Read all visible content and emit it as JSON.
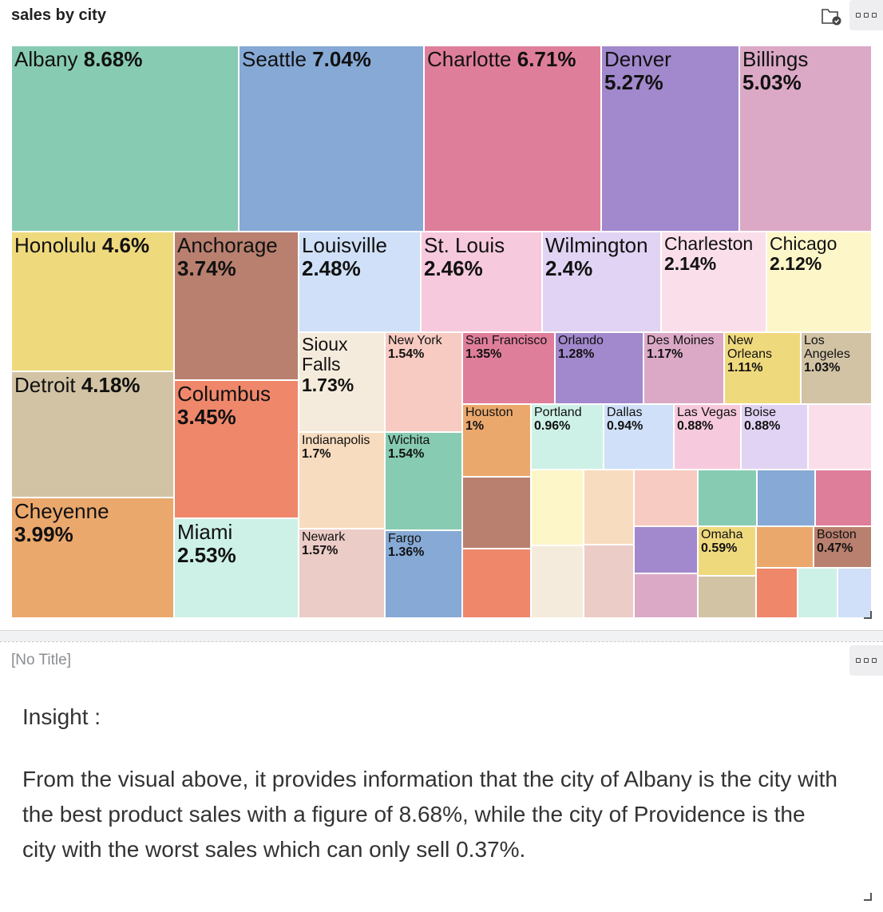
{
  "panel1": {
    "title": "sales by city"
  },
  "panel2": {
    "title": "[No Title]",
    "insight_heading": "Insight :",
    "insight_text": "From the visual above, it provides information that the city of Albany is the city with the best product sales with a figure of 8.68%, while the city of Providence is the city with the worst sales which can only sell 0.37%."
  },
  "icons": {
    "menu": "more-options-icon",
    "folder": "folder-check-icon",
    "resize": "resize-handle-icon"
  },
  "chart_data": {
    "type": "treemap",
    "title": "sales by city",
    "unit": "%",
    "items": [
      {
        "name": "Albany",
        "value": 8.68,
        "label": "8.68%",
        "color": "#88cbb3"
      },
      {
        "name": "Seattle",
        "value": 7.04,
        "label": "7.04%",
        "color": "#86a9d5"
      },
      {
        "name": "Charlotte",
        "value": 6.71,
        "label": "6.71%",
        "color": "#df7e9b"
      },
      {
        "name": "Denver",
        "value": 5.27,
        "label": "5.27%",
        "color": "#a288cc"
      },
      {
        "name": "Billings",
        "value": 5.03,
        "label": "5.03%",
        "color": "#dba9c6"
      },
      {
        "name": "Honolulu",
        "value": 4.6,
        "label": "4.6%",
        "color": "#efd97d"
      },
      {
        "name": "Anchorage",
        "value": 3.74,
        "label": "3.74%",
        "color": "#b9806f"
      },
      {
        "name": "Louisville",
        "value": 2.48,
        "label": "2.48%",
        "color": "#cfe0f8"
      },
      {
        "name": "St. Louis",
        "value": 2.46,
        "label": "2.46%",
        "color": "#f7c9dc"
      },
      {
        "name": "Wilmington",
        "value": 2.4,
        "label": "2.4%",
        "color": "#e1d3f3"
      },
      {
        "name": "Charleston",
        "value": 2.14,
        "label": "2.14%",
        "color": "#fadfea"
      },
      {
        "name": "Chicago",
        "value": 2.12,
        "label": "2.12%",
        "color": "#fdf6c8"
      },
      {
        "name": "Detroit",
        "value": 4.18,
        "label": "4.18%",
        "color": "#d2c3a5"
      },
      {
        "name": "Columbus",
        "value": 3.45,
        "label": "3.45%",
        "color": "#ef876b"
      },
      {
        "name": "Cheyenne",
        "value": 3.99,
        "label": "3.99%",
        "color": "#eba86d"
      },
      {
        "name": "Miami",
        "value": 2.53,
        "label": "2.53%",
        "color": "#cdf1e6"
      },
      {
        "name": "Sioux Falls",
        "value": 1.73,
        "label": "1.73%",
        "color": "#f5ebdc"
      },
      {
        "name": "New York",
        "value": 1.54,
        "label": "1.54%",
        "color": "#f7cbc1"
      },
      {
        "name": "San Francisco",
        "value": 1.35,
        "label": "1.35%",
        "color": "#df7e9b"
      },
      {
        "name": "Orlando",
        "value": 1.28,
        "label": "1.28%",
        "color": "#a288cc"
      },
      {
        "name": "Des Moines",
        "value": 1.17,
        "label": "1.17%",
        "color": "#dba9c6"
      },
      {
        "name": "New Orleans",
        "value": 1.11,
        "label": "1.11%",
        "color": "#efd97d"
      },
      {
        "name": "Los Angeles",
        "value": 1.03,
        "label": "1.03%",
        "color": "#d2c3a5"
      },
      {
        "name": "Indianapolis",
        "value": 1.7,
        "label": "1.7%",
        "color": "#f8dcbf"
      },
      {
        "name": "Wichita",
        "value": 1.54,
        "label": "1.54%",
        "color": "#88cbb3"
      },
      {
        "name": "Houston",
        "value": 1.0,
        "label": "1%",
        "color": "#eba86d"
      },
      {
        "name": "Portland",
        "value": 0.96,
        "label": "0.96%",
        "color": "#cdf1e6"
      },
      {
        "name": "Dallas",
        "value": 0.94,
        "label": "0.94%",
        "color": "#cfe0f8"
      },
      {
        "name": "Las Vegas",
        "value": 0.88,
        "label": "0.88%",
        "color": "#f7c9dc"
      },
      {
        "name": "Boise",
        "value": 0.88,
        "label": "0.88%",
        "color": "#e1d3f3"
      },
      {
        "name": "Newark",
        "value": 1.57,
        "label": "1.57%",
        "color": "#ecccc6"
      },
      {
        "name": "Fargo",
        "value": 1.36,
        "label": "1.36%",
        "color": "#86a9d5"
      },
      {
        "name": "Omaha",
        "value": 0.59,
        "label": "0.59%",
        "color": "#efd97d"
      },
      {
        "name": "Boston",
        "value": 0.47,
        "label": "0.47%",
        "color": "#b9806f"
      },
      {
        "name": "",
        "value": 0.85,
        "label": "",
        "color": "#fadfea"
      },
      {
        "name": "",
        "value": 0.85,
        "label": "",
        "color": "#b9806f"
      },
      {
        "name": "",
        "value": 0.8,
        "label": "",
        "color": "#ef876b"
      },
      {
        "name": "",
        "value": 0.8,
        "label": "",
        "color": "#f5ebdc"
      },
      {
        "name": "",
        "value": 0.78,
        "label": "",
        "color": "#fdf6c8"
      },
      {
        "name": "",
        "value": 0.77,
        "label": "",
        "color": "#f8dcbf"
      },
      {
        "name": "",
        "value": 0.76,
        "label": "",
        "color": "#ecccc6"
      },
      {
        "name": "",
        "value": 0.72,
        "label": "",
        "color": "#f7cbc1"
      },
      {
        "name": "",
        "value": 0.7,
        "label": "",
        "color": "#88cbb3"
      },
      {
        "name": "",
        "value": 0.68,
        "label": "",
        "color": "#86a9d5"
      },
      {
        "name": "",
        "value": 0.66,
        "label": "",
        "color": "#df7e9b"
      },
      {
        "name": "",
        "value": 0.6,
        "label": "",
        "color": "#a288cc"
      },
      {
        "name": "",
        "value": 0.55,
        "label": "",
        "color": "#dba9c6"
      },
      {
        "name": "",
        "value": 0.53,
        "label": "",
        "color": "#d2c3a5"
      },
      {
        "name": "",
        "value": 0.49,
        "label": "",
        "color": "#eba86d"
      },
      {
        "name": "",
        "value": 0.43,
        "label": "",
        "color": "#ef876b"
      },
      {
        "name": "",
        "value": 0.4,
        "label": "",
        "color": "#cdf1e6"
      },
      {
        "name": "",
        "value": 0.37,
        "label": "",
        "color": "#cfe0f8"
      }
    ]
  }
}
